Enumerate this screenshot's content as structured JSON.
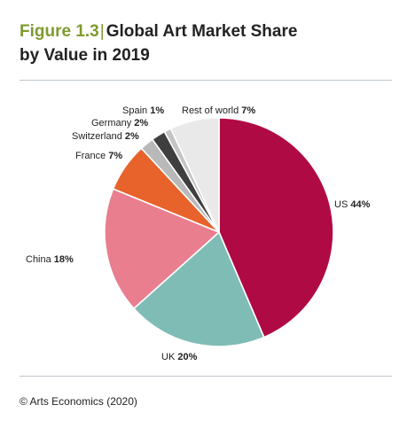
{
  "header": {
    "figure_number": "Figure 1.3",
    "separator": "|",
    "title_line1": "Global Art Market Share",
    "title_line2": "by Value in 2019"
  },
  "source": "© Arts Economics (2020)",
  "colors": {
    "figure_number": "#7f9a2f",
    "rule": "#bfc8cf"
  },
  "chart_data": {
    "type": "pie",
    "unit": "%",
    "start_angle_deg": 0,
    "direction": "clockwise",
    "slices": [
      {
        "label": "US",
        "value": 44,
        "color": "#b00a45"
      },
      {
        "label": "UK",
        "value": 20,
        "color": "#7fbcb5"
      },
      {
        "label": "China",
        "value": 18,
        "color": "#e87e8e"
      },
      {
        "label": "France",
        "value": 7,
        "color": "#e8622c"
      },
      {
        "label": "Switzerland",
        "value": 2,
        "color": "#b9b9b9"
      },
      {
        "label": "Germany",
        "value": 2,
        "color": "#3f3f3f"
      },
      {
        "label": "Spain",
        "value": 1,
        "color": "#c4c4c4"
      },
      {
        "label": "Rest of world",
        "value": 7,
        "color": "#e9e9e9"
      }
    ]
  }
}
